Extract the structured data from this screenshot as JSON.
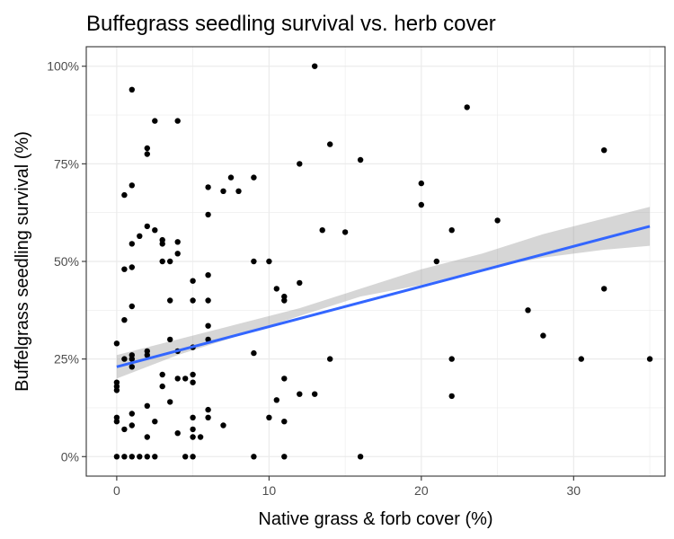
{
  "chart_data": {
    "type": "scatter",
    "title": "Buffegrass seedling survival vs. herb cover",
    "xlabel": "Native grass & forb cover (%)",
    "ylabel": "Buffelgrass seedling survival (%)",
    "xlim": [
      -2,
      36
    ],
    "ylim": [
      -0.05,
      1.05
    ],
    "x_ticks": [
      0,
      10,
      20,
      30
    ],
    "x_tick_labels": [
      "0",
      "10",
      "20",
      "30"
    ],
    "y_ticks": [
      0,
      0.25,
      0.5,
      0.75,
      1.0
    ],
    "y_tick_labels": [
      "0%",
      "25%",
      "50%",
      "75%",
      "100%"
    ],
    "grid": true,
    "point_color": "#000000",
    "trend": {
      "type": "linear",
      "color": "#3366ff",
      "band_color": "#999999",
      "x0": 0,
      "y0": 0.23,
      "x1": 35,
      "y1": 0.59,
      "band": [
        [
          0,
          0.2,
          0.26
        ],
        [
          4,
          0.26,
          0.3
        ],
        [
          8,
          0.31,
          0.34
        ],
        [
          12,
          0.36,
          0.38
        ],
        [
          16,
          0.41,
          0.43
        ],
        [
          20,
          0.44,
          0.48
        ],
        [
          24,
          0.48,
          0.52
        ],
        [
          28,
          0.51,
          0.57
        ],
        [
          32,
          0.53,
          0.61
        ],
        [
          35,
          0.54,
          0.64
        ]
      ]
    },
    "points": [
      [
        0,
        0.29
      ],
      [
        0,
        0.19
      ],
      [
        0,
        0.18
      ],
      [
        0,
        0.17
      ],
      [
        0,
        0.1
      ],
      [
        0,
        0.09
      ],
      [
        0,
        0.0
      ],
      [
        0.5,
        0.67
      ],
      [
        0.5,
        0.48
      ],
      [
        0.5,
        0.35
      ],
      [
        0.5,
        0.25
      ],
      [
        0.5,
        0.07
      ],
      [
        0.5,
        0.0
      ],
      [
        1,
        0.94
      ],
      [
        1,
        0.695
      ],
      [
        1,
        0.545
      ],
      [
        1,
        0.485
      ],
      [
        1,
        0.385
      ],
      [
        1,
        0.26
      ],
      [
        1,
        0.25
      ],
      [
        1,
        0.23
      ],
      [
        1,
        0.11
      ],
      [
        1,
        0.08
      ],
      [
        1,
        0.0
      ],
      [
        1.5,
        0.565
      ],
      [
        1.5,
        0.0
      ],
      [
        2,
        0.79
      ],
      [
        2,
        0.775
      ],
      [
        2,
        0.59
      ],
      [
        2,
        0.27
      ],
      [
        2,
        0.26
      ],
      [
        2,
        0.13
      ],
      [
        2,
        0.05
      ],
      [
        2,
        0.0
      ],
      [
        2.5,
        0.86
      ],
      [
        2.5,
        0.58
      ],
      [
        2.5,
        0.09
      ],
      [
        2.5,
        0.0
      ],
      [
        3,
        0.555
      ],
      [
        3,
        0.545
      ],
      [
        3,
        0.5
      ],
      [
        3,
        0.21
      ],
      [
        3,
        0.18
      ],
      [
        3.5,
        0.5
      ],
      [
        3.5,
        0.4
      ],
      [
        3.5,
        0.3
      ],
      [
        3.5,
        0.14
      ],
      [
        4,
        0.86
      ],
      [
        4,
        0.55
      ],
      [
        4,
        0.52
      ],
      [
        4,
        0.27
      ],
      [
        4,
        0.2
      ],
      [
        4,
        0.06
      ],
      [
        4.5,
        0.2
      ],
      [
        4.5,
        0.0
      ],
      [
        5,
        0.45
      ],
      [
        5,
        0.4
      ],
      [
        5,
        0.28
      ],
      [
        5,
        0.21
      ],
      [
        5,
        0.19
      ],
      [
        5,
        0.1
      ],
      [
        5,
        0.07
      ],
      [
        5,
        0.05
      ],
      [
        5,
        0.0
      ],
      [
        5.5,
        0.05
      ],
      [
        6,
        0.69
      ],
      [
        6,
        0.62
      ],
      [
        6,
        0.465
      ],
      [
        6,
        0.4
      ],
      [
        6,
        0.335
      ],
      [
        6,
        0.3
      ],
      [
        6,
        0.12
      ],
      [
        6,
        0.1
      ],
      [
        7,
        0.68
      ],
      [
        7,
        0.08
      ],
      [
        7.5,
        0.715
      ],
      [
        8,
        0.68
      ],
      [
        9,
        0.715
      ],
      [
        9,
        0.5
      ],
      [
        9,
        0.265
      ],
      [
        9,
        0.0
      ],
      [
        10,
        0.5
      ],
      [
        10,
        0.1
      ],
      [
        10.5,
        0.43
      ],
      [
        10.5,
        0.145
      ],
      [
        11,
        0.41
      ],
      [
        11,
        0.4
      ],
      [
        11,
        0.2
      ],
      [
        11,
        0.09
      ],
      [
        11,
        0.0
      ],
      [
        12,
        0.75
      ],
      [
        12,
        0.445
      ],
      [
        12,
        0.16
      ],
      [
        13,
        1.0
      ],
      [
        13,
        0.16
      ],
      [
        13.5,
        0.58
      ],
      [
        14,
        0.8
      ],
      [
        14,
        0.25
      ],
      [
        15,
        0.575
      ],
      [
        16,
        0.76
      ],
      [
        16,
        0.0
      ],
      [
        20,
        0.7
      ],
      [
        20,
        0.645
      ],
      [
        21,
        0.5
      ],
      [
        22,
        0.58
      ],
      [
        22,
        0.25
      ],
      [
        22,
        0.155
      ],
      [
        23,
        0.895
      ],
      [
        25,
        0.605
      ],
      [
        27,
        0.375
      ],
      [
        28,
        0.31
      ],
      [
        30.5,
        0.25
      ],
      [
        32,
        0.785
      ],
      [
        32,
        0.43
      ],
      [
        35,
        0.25
      ]
    ]
  }
}
